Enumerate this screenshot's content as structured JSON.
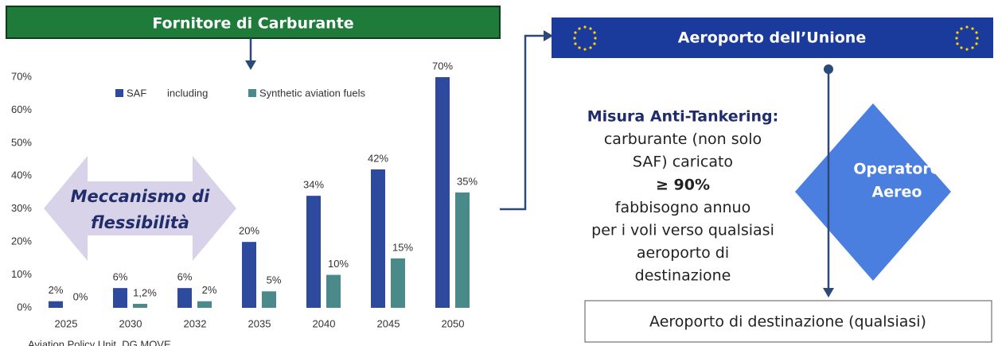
{
  "header": {
    "title": "Fornitore di Carburante"
  },
  "chart_data": {
    "type": "bar",
    "categories": [
      "2025",
      "2030",
      "2032",
      "2035",
      "2040",
      "2045",
      "2050"
    ],
    "series": [
      {
        "name": "SAF",
        "color": "#2e4a9e",
        "values": [
          2,
          6,
          6,
          20,
          34,
          42,
          70
        ],
        "value_labels": [
          "2%",
          "6%",
          "6%",
          "20%",
          "34%",
          "42%",
          "70%"
        ]
      },
      {
        "name": "Synthetic aviation fuels",
        "color": "#4a8a8a",
        "values": [
          0,
          1.2,
          2,
          5,
          10,
          15,
          35
        ],
        "value_labels": [
          "0%",
          "1,2%",
          "2%",
          "5%",
          "10%",
          "15%",
          "35%"
        ]
      }
    ],
    "legend_connector": "including",
    "ylim": [
      0,
      70
    ],
    "yticks": [
      {
        "value": 0,
        "label": "0%"
      },
      {
        "value": 10,
        "label": "10%"
      },
      {
        "value": 20,
        "label": "20%"
      },
      {
        "value": 30,
        "label": "30%"
      },
      {
        "value": 40,
        "label": "40%"
      },
      {
        "value": 50,
        "label": "50%"
      },
      {
        "value": 60,
        "label": "60%"
      },
      {
        "value": 70,
        "label": "70%"
      }
    ],
    "source": "Aviation Policy Unit, DG MOVE"
  },
  "flex_arrow": {
    "lines": [
      "Meccanismo di",
      "flessibilità"
    ]
  },
  "union_airport": {
    "title": "Aeroporto dell’Unione"
  },
  "measure": {
    "title": "Misura Anti-Tankering:",
    "lines": [
      "carburante (non solo",
      "SAF) caricato",
      "≥ 90%",
      "fabbisogno annuo",
      "per i voli verso qualsiasi",
      "aeroporto di",
      "destinazione"
    ]
  },
  "operator": {
    "lines": [
      "Operatore",
      "Aereo"
    ]
  },
  "destination": {
    "label": "Aeroporto di destinazione (qualsiasi)"
  }
}
